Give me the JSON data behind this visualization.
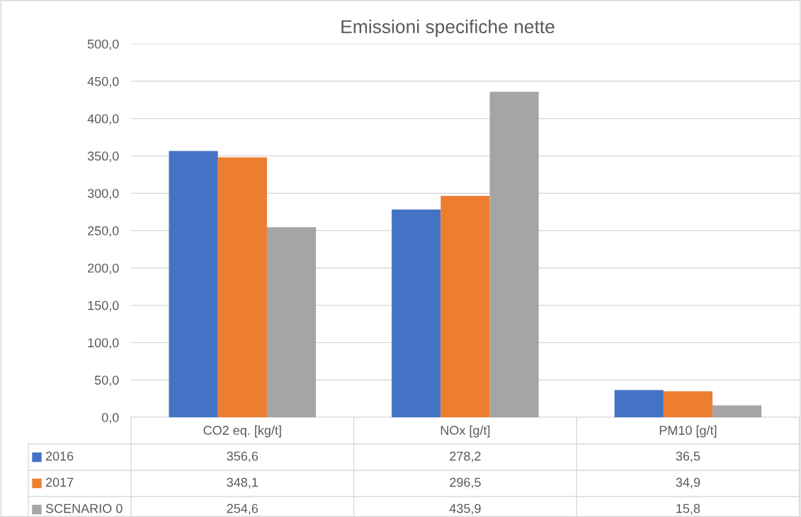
{
  "chart_data": {
    "type": "bar",
    "title": "Emissioni specifiche nette",
    "categories": [
      "CO2 eq. [kg/t]",
      "NOx [g/t]",
      "PM10 [g/t]"
    ],
    "series": [
      {
        "name": "2016",
        "color": "#4472c4",
        "values": [
          356.6,
          278.2,
          36.5
        ],
        "value_labels": [
          "356,6",
          "278,2",
          "36,5"
        ]
      },
      {
        "name": "2017",
        "color": "#ed7d31",
        "values": [
          348.1,
          296.5,
          34.9
        ],
        "value_labels": [
          "348,1",
          "296,5",
          "34,9"
        ]
      },
      {
        "name": "SCENARIO 0",
        "color": "#a5a5a5",
        "values": [
          254.6,
          435.9,
          15.8
        ],
        "value_labels": [
          "254,6",
          "435,9",
          "15,8"
        ]
      }
    ],
    "ylim": [
      0,
      500
    ],
    "yticks": [
      {
        "value": 0,
        "label": "0,0"
      },
      {
        "value": 50,
        "label": "50,0"
      },
      {
        "value": 100,
        "label": "100,0"
      },
      {
        "value": 150,
        "label": "150,0"
      },
      {
        "value": 200,
        "label": "200,0"
      },
      {
        "value": 250,
        "label": "250,0"
      },
      {
        "value": 300,
        "label": "300,0"
      },
      {
        "value": 350,
        "label": "350,0"
      },
      {
        "value": 400,
        "label": "400,0"
      },
      {
        "value": 450,
        "label": "450,0"
      },
      {
        "value": 500,
        "label": "500,0"
      }
    ],
    "grid": "y",
    "legend": "bottom"
  }
}
